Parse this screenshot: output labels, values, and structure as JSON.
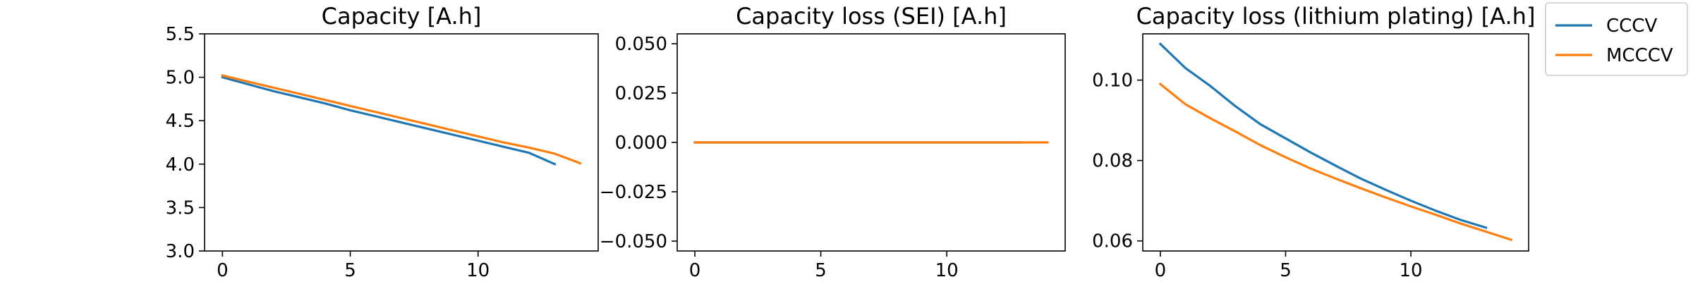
{
  "chart_data": [
    {
      "type": "line",
      "title": "Capacity [A.h]",
      "xlim": [
        -0.7,
        14.7
      ],
      "ylim": [
        3.0,
        5.5
      ],
      "xticks": [
        0,
        5,
        10
      ],
      "xtick_labels": [
        "0",
        "5",
        "10"
      ],
      "yticks": [
        3.0,
        3.5,
        4.0,
        4.5,
        5.0,
        5.5
      ],
      "ytick_labels": [
        "3.0",
        "3.5",
        "4.0",
        "4.5",
        "5.0",
        "5.5"
      ],
      "series": [
        {
          "name": "CCCV",
          "color": "#1f77b4",
          "x": [
            0,
            1,
            2,
            3,
            4,
            5,
            6,
            7,
            8,
            9,
            10,
            11,
            12,
            13
          ],
          "y": [
            5.0,
            4.92,
            4.84,
            4.77,
            4.7,
            4.62,
            4.55,
            4.48,
            4.41,
            4.34,
            4.27,
            4.2,
            4.13,
            4.0
          ]
        },
        {
          "name": "MCCCV",
          "color": "#ff7f0e",
          "x": [
            0,
            1,
            2,
            3,
            4,
            5,
            6,
            7,
            8,
            9,
            10,
            11,
            12,
            13,
            14
          ],
          "y": [
            5.02,
            4.95,
            4.88,
            4.81,
            4.74,
            4.67,
            4.6,
            4.53,
            4.46,
            4.39,
            4.32,
            4.25,
            4.19,
            4.12,
            4.01
          ]
        }
      ]
    },
    {
      "type": "line",
      "title": "Capacity loss (SEI) [A.h]",
      "xlim": [
        -0.7,
        14.7
      ],
      "ylim": [
        -0.055,
        0.055
      ],
      "xticks": [
        0,
        5,
        10
      ],
      "xtick_labels": [
        "0",
        "5",
        "10"
      ],
      "yticks": [
        -0.05,
        -0.025,
        0.0,
        0.025,
        0.05
      ],
      "ytick_labels": [
        "−0.050",
        "−0.025",
        "0.000",
        "0.025",
        "0.050"
      ],
      "series": [
        {
          "name": "CCCV",
          "color": "#1f77b4",
          "x": [
            0,
            1,
            2,
            3,
            4,
            5,
            6,
            7,
            8,
            9,
            10,
            11,
            12,
            13
          ],
          "y": [
            0,
            0,
            0,
            0,
            0,
            0,
            0,
            0,
            0,
            0,
            0,
            0,
            0,
            0
          ]
        },
        {
          "name": "MCCCV",
          "color": "#ff7f0e",
          "x": [
            0,
            1,
            2,
            3,
            4,
            5,
            6,
            7,
            8,
            9,
            10,
            11,
            12,
            13,
            14
          ],
          "y": [
            0,
            0,
            0,
            0,
            0,
            0,
            0,
            0,
            0,
            0,
            0,
            0,
            0,
            0,
            0
          ]
        }
      ]
    },
    {
      "type": "line",
      "title": "Capacity loss (lithium plating) [A.h]",
      "xlim": [
        -0.7,
        14.7
      ],
      "ylim": [
        0.0575,
        0.1115
      ],
      "xticks": [
        0,
        5,
        10
      ],
      "xtick_labels": [
        "0",
        "5",
        "10"
      ],
      "yticks": [
        0.06,
        0.08,
        0.1
      ],
      "ytick_labels": [
        "0.06",
        "0.08",
        "0.10"
      ],
      "series": [
        {
          "name": "CCCV",
          "color": "#1f77b4",
          "x": [
            0,
            1,
            2,
            3,
            4,
            5,
            6,
            7,
            8,
            9,
            10,
            11,
            12,
            13
          ],
          "y": [
            0.109,
            0.103,
            0.0985,
            0.0935,
            0.089,
            0.0855,
            0.082,
            0.0787,
            0.0755,
            0.0727,
            0.07,
            0.0675,
            0.0652,
            0.0633
          ]
        },
        {
          "name": "MCCCV",
          "color": "#ff7f0e",
          "x": [
            0,
            1,
            2,
            3,
            4,
            5,
            6,
            7,
            8,
            9,
            10,
            11,
            12,
            13,
            14
          ],
          "y": [
            0.099,
            0.094,
            0.0905,
            0.0872,
            0.0838,
            0.0808,
            0.078,
            0.0755,
            0.0731,
            0.0708,
            0.0686,
            0.0665,
            0.0643,
            0.0623,
            0.0603
          ]
        }
      ]
    }
  ],
  "legend": {
    "placement": "upper-right",
    "entries": [
      {
        "label": "CCCV",
        "color": "#1f77b4"
      },
      {
        "label": "MCCCV",
        "color": "#ff7f0e"
      }
    ]
  }
}
